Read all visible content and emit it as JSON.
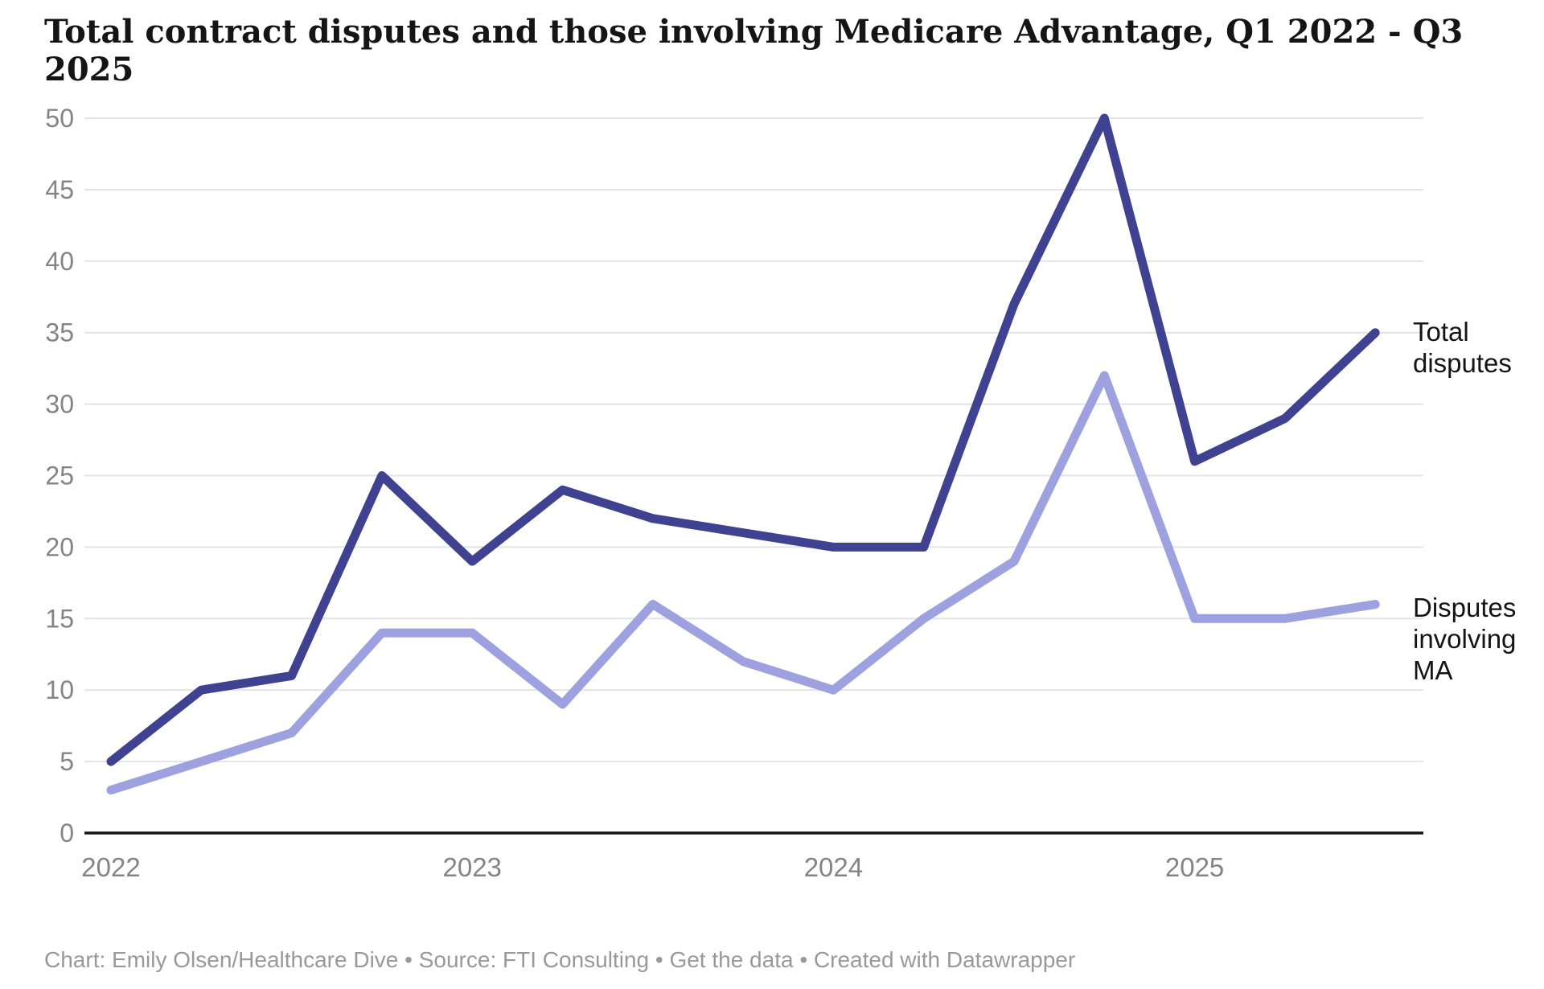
{
  "title": "Total contract disputes and those involving Medicare Advantage, Q1 2022 - Q3 2025",
  "chart_data": {
    "type": "line",
    "x": [
      "Q1 2022",
      "Q2 2022",
      "Q3 2022",
      "Q4 2022",
      "Q1 2023",
      "Q2 2023",
      "Q3 2023",
      "Q4 2023",
      "Q1 2024",
      "Q2 2024",
      "Q3 2024",
      "Q4 2024",
      "Q1 2025",
      "Q2 2025",
      "Q3 2025"
    ],
    "series": [
      {
        "name": "Total disputes",
        "color": "#3f4191",
        "values": [
          5,
          10,
          11,
          25,
          19,
          24,
          22,
          21,
          20,
          20,
          37,
          50,
          26,
          29,
          35
        ]
      },
      {
        "name": "Disputes involving MA",
        "color": "#9da1e0",
        "values": [
          3,
          5,
          7,
          14,
          14,
          9,
          16,
          12,
          10,
          15,
          19,
          32,
          15,
          15,
          16
        ]
      }
    ],
    "title": "Total contract disputes and those involving Medicare Advantage, Q1 2022 - Q3 2025",
    "xlabel": "",
    "ylabel": "",
    "ylim": [
      0,
      50
    ],
    "yticks": [
      0,
      5,
      10,
      15,
      20,
      25,
      30,
      35,
      40,
      45,
      50
    ],
    "xticks": [
      "2022",
      "2023",
      "2024",
      "2025"
    ],
    "grid": "horizontal",
    "legend_position": "right-of-line-end-labels"
  },
  "colors": {
    "total_line": "#3f4191",
    "ma_line": "#9da1e0",
    "gridline": "#e4e4e4",
    "axis_line": "#151515",
    "tick_label": "#848484",
    "footer_text": "#999999"
  },
  "footer": {
    "parts": [
      {
        "text": "Chart: Emily Olsen/Healthcare Dive • Source: FTI Consulting • ",
        "link": false
      },
      {
        "text": "Get the data",
        "link": true
      },
      {
        "text": " • Created with Datawrapper",
        "link": false
      }
    ]
  }
}
